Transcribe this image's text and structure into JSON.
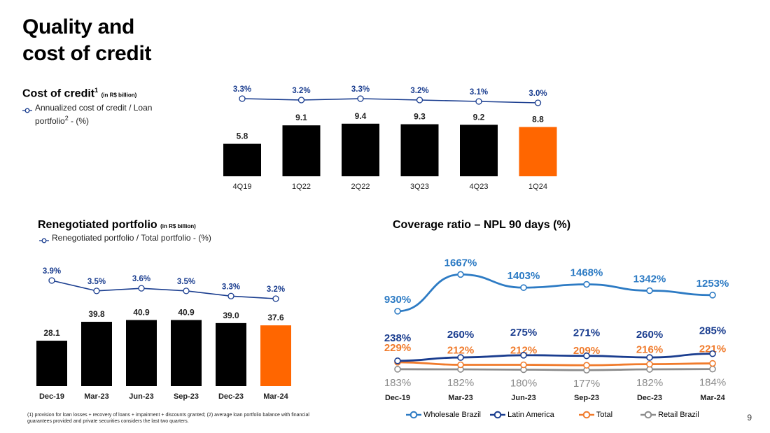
{
  "page": {
    "title_line1": "Quality and",
    "title_line2": "cost of credit",
    "page_number": "9",
    "footnote_line1": "(1) provision for loan losses + recovery of loans + impairment + discounts granted; (2) average loan portfolio balance with financial",
    "footnote_line2": "guarantees provided and private securities considers the last two quarters."
  },
  "colors": {
    "black_bar": "#000000",
    "highlight_bar": "#ff6600",
    "navy_line": "#1a3d8f",
    "blue_line": "#2d7bc4",
    "orange_line": "#f07b2c",
    "gray_line": "#8c8c8c"
  },
  "cost_of_credit": {
    "title": "Cost of credit",
    "title_sup": "1",
    "unit": "(in R$ billion)",
    "legend_line1": "Annualized cost of credit / Loan",
    "legend_line2": "portfolio",
    "legend_sup": "2",
    "legend_tail": " - (%)"
  },
  "renegotiated": {
    "title": "Renegotiated portfolio",
    "unit": "(in R$ billion)",
    "legend": "Renegotiated portfolio / Total portfolio - (%)"
  },
  "coverage": {
    "title": "Coverage ratio – NPL 90 days (%)",
    "legend": [
      "Wholesale Brazil",
      "Latin America",
      "Total",
      "Retail Brazil"
    ]
  },
  "chart_data": [
    {
      "type": "bar",
      "name": "cost_of_credit",
      "categories": [
        "4Q19",
        "1Q22",
        "2Q22",
        "3Q23",
        "4Q23",
        "1Q24"
      ],
      "values": [
        5.8,
        9.1,
        9.4,
        9.3,
        9.2,
        8.8
      ],
      "value_labels": [
        "5.8",
        "9.1",
        "9.4",
        "9.3",
        "9.2",
        "8.8"
      ],
      "highlight_index": 5,
      "ylim": [
        0,
        10
      ],
      "overlay_line": {
        "name": "Annualized cost of credit / Loan portfolio (%)",
        "values": [
          3.3,
          3.2,
          3.3,
          3.2,
          3.1,
          3.0
        ],
        "labels": [
          "3.3%",
          "3.2%",
          "3.3%",
          "3.2%",
          "3.1%",
          "3.0%"
        ]
      }
    },
    {
      "type": "bar",
      "name": "renegotiated_portfolio",
      "categories": [
        "Dec-19",
        "Mar-23",
        "Jun-23",
        "Sep-23",
        "Dec-23",
        "Mar-24"
      ],
      "values": [
        28.1,
        39.8,
        40.9,
        40.9,
        39.0,
        37.6
      ],
      "value_labels": [
        "28.1",
        "39.8",
        "40.9",
        "40.9",
        "39.0",
        "37.6"
      ],
      "highlight_index": 5,
      "ylim": [
        0,
        45
      ],
      "overlay_line": {
        "name": "Renegotiated portfolio / Total portfolio (%)",
        "values": [
          3.9,
          3.5,
          3.6,
          3.5,
          3.3,
          3.2
        ],
        "labels": [
          "3.9%",
          "3.5%",
          "3.6%",
          "3.5%",
          "3.3%",
          "3.2%"
        ]
      }
    },
    {
      "type": "line",
      "name": "coverage_ratio",
      "title": "Coverage ratio – NPL 90 days (%)",
      "categories": [
        "Dec-19",
        "Mar-23",
        "Jun-23",
        "Sep-23",
        "Dec-23",
        "Mar-24"
      ],
      "series": [
        {
          "name": "Wholesale Brazil",
          "values": [
            930,
            1667,
            1403,
            1468,
            1342,
            1253
          ],
          "labels": [
            "930%",
            "1667%",
            "1403%",
            "1468%",
            "1342%",
            "1253%"
          ]
        },
        {
          "name": "Latin America",
          "values": [
            238,
            260,
            275,
            271,
            260,
            285
          ],
          "labels": [
            "238%",
            "260%",
            "275%",
            "271%",
            "260%",
            "285%"
          ]
        },
        {
          "name": "Total",
          "values": [
            229,
            212,
            212,
            209,
            216,
            221
          ],
          "labels": [
            "229%",
            "212%",
            "212%",
            "209%",
            "216%",
            "221%"
          ]
        },
        {
          "name": "Retail Brazil",
          "values": [
            183,
            182,
            180,
            177,
            182,
            184
          ],
          "labels": [
            "183%",
            "182%",
            "180%",
            "177%",
            "182%",
            "184%"
          ]
        }
      ]
    }
  ]
}
